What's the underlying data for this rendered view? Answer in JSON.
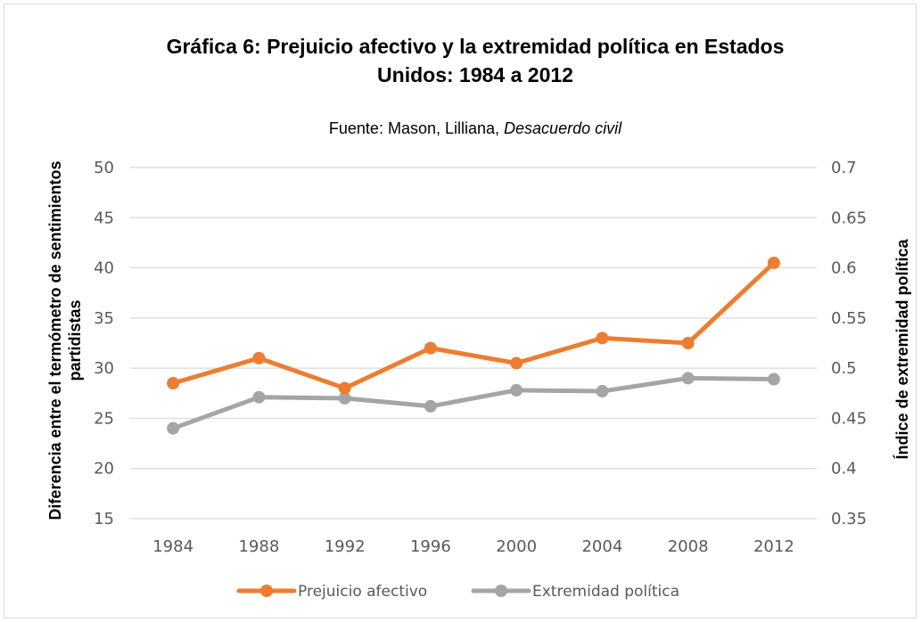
{
  "chart_data": {
    "type": "line",
    "title": [
      "Gráfica 6: Prejuicio afectivo y la extremidad política en Estados",
      "Unidos: 1984 a 2012"
    ],
    "subtitle": {
      "prefix": "Fuente: Mason, Lilliana, ",
      "italic": "Desacuerdo civil"
    },
    "ylabel": [
      "Diferencia entre el termómetro de sentimientos",
      "partidistas"
    ],
    "y2label": "Índice de extremidad política",
    "categories": [
      "1984",
      "1988",
      "1992",
      "1996",
      "2000",
      "2004",
      "2008",
      "2012"
    ],
    "ylim": [
      15,
      50
    ],
    "yticks": [
      "50",
      "45",
      "40",
      "35",
      "30",
      "25",
      "20",
      "15"
    ],
    "y2lim": [
      0.35,
      0.7
    ],
    "y2ticks": [
      "0.7",
      "0.65",
      "0.6",
      "0.55",
      "0.5",
      "0.45",
      "0.4",
      "0.35"
    ],
    "grid": true,
    "legend_position": "bottom",
    "series": [
      {
        "name": "Prejuicio afectivo",
        "axis": "left",
        "color": "#ed7d31",
        "values": [
          28.5,
          31,
          28,
          32,
          30.5,
          33,
          32.5,
          40.5
        ]
      },
      {
        "name": "Extremidad política",
        "axis": "right",
        "color": "#a5a5a5",
        "values": [
          0.44,
          0.471,
          0.47,
          0.462,
          0.478,
          0.477,
          0.49,
          0.489
        ]
      }
    ]
  }
}
